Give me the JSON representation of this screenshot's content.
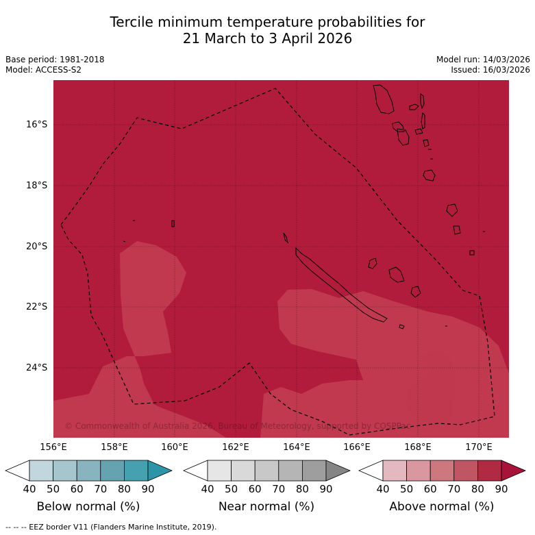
{
  "title": {
    "line1": "Tercile minimum temperature probabilities for",
    "line2": "21 March to 3 April 2026"
  },
  "meta": {
    "base_period": "Base period: 1981-2018",
    "model": "Model: ACCESS-S2",
    "model_run": "Model run: 14/03/2026",
    "issued": "Issued: 16/03/2026"
  },
  "map": {
    "background_color": "#b21c3c",
    "lighter_color": "#c0394e",
    "lat_labels": [
      "16°S",
      "18°S",
      "20°S",
      "22°S",
      "24°S"
    ],
    "lon_labels": [
      "156°E",
      "158°E",
      "160°E",
      "162°E",
      "164°E",
      "166°E",
      "168°E",
      "170°E"
    ],
    "copyright": "© Commonwealth of Australia 2026, Bureau of Meteorology, supported by COSPPac"
  },
  "colorbars": [
    {
      "title": "Below normal (%)",
      "ticks": [
        "40",
        "50",
        "60",
        "70",
        "80",
        "90"
      ],
      "colors": [
        "#ffffff",
        "#c2d7dd",
        "#a6c6cd",
        "#87b4bf",
        "#66a3b0",
        "#45a0b0",
        "#2c95a8"
      ]
    },
    {
      "title": "Near normal (%)",
      "ticks": [
        "40",
        "50",
        "60",
        "70",
        "80",
        "90"
      ],
      "colors": [
        "#ffffff",
        "#e6e6e6",
        "#d9d9d9",
        "#c8c8c8",
        "#b5b5b5",
        "#9e9e9e",
        "#858585"
      ]
    },
    {
      "title": "Above normal (%)",
      "ticks": [
        "40",
        "50",
        "60",
        "70",
        "80",
        "90"
      ],
      "colors": [
        "#ffffff",
        "#e3b8bf",
        "#d9979f",
        "#cd787f",
        "#c05663",
        "#b12a44",
        "#a8133a"
      ]
    }
  ],
  "footer": "--  --  -- EEZ border V11 (Flanders Marine Institute, 2019)."
}
